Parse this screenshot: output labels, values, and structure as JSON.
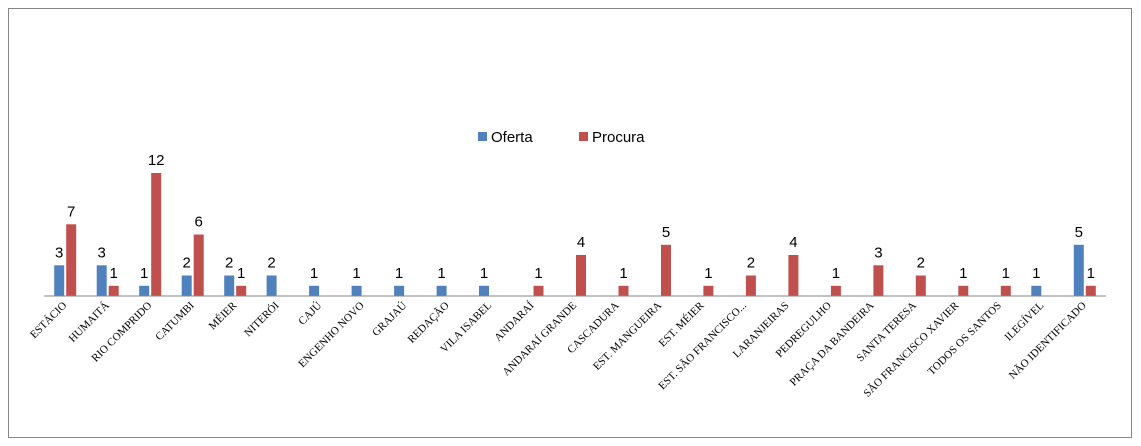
{
  "chart_data": {
    "type": "bar",
    "title": "",
    "xlabel": "",
    "ylabel": "",
    "ylim": [
      0,
      12
    ],
    "grid": false,
    "legend_position": "top-center",
    "colors": {
      "oferta": "#4F81BD",
      "procura": "#C0504D",
      "axis": "#868686"
    },
    "categories": [
      "ESTÁCIO",
      "HUMAITÁ",
      "RIO COMPRIDO",
      "CATUMBI",
      "MÉIER",
      "NITERÓI",
      "CAJÚ",
      "ENGENHO NOVO",
      "GRAJAÚ",
      "REDAÇÃO",
      "VILA ISABEL",
      "ANDARAÍ",
      "ANDARAÍ GRANDE",
      "CASCADURA",
      "EST. MANGUEIRA",
      "EST. MÉIER",
      "EST. SÃO FRANCISCO...",
      "LARANJEIRAS",
      "PEDREGULHO",
      "PRAÇA DA BANDEIRA",
      "SANTA TERESA",
      "SÃO FRANCISCO XAVIER",
      "TODOS OS SANTOS",
      "ILEGÍVEL",
      "NÃO IDENTIFICADO"
    ],
    "series": [
      {
        "name": "Oferta",
        "values": [
          3,
          3,
          1,
          2,
          2,
          2,
          1,
          1,
          1,
          1,
          1,
          null,
          null,
          null,
          null,
          null,
          null,
          null,
          null,
          null,
          null,
          null,
          null,
          1,
          5
        ]
      },
      {
        "name": "Procura",
        "values": [
          7,
          1,
          12,
          6,
          1,
          null,
          null,
          null,
          null,
          null,
          null,
          1,
          4,
          1,
          5,
          1,
          2,
          4,
          1,
          3,
          2,
          1,
          1,
          null,
          1
        ]
      }
    ]
  }
}
